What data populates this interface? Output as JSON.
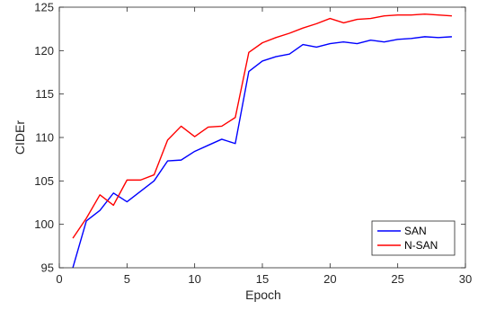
{
  "chart_data": {
    "type": "line",
    "title": "",
    "xlabel": "Epoch",
    "ylabel": "CIDEr",
    "xlim": [
      0,
      30
    ],
    "ylim": [
      95,
      125
    ],
    "xticks": [
      0,
      5,
      10,
      15,
      20,
      25,
      30
    ],
    "yticks": [
      95,
      100,
      105,
      110,
      115,
      120,
      125
    ],
    "xtick_labels": [
      "0",
      "5",
      "10",
      "15",
      "20",
      "25",
      "30"
    ],
    "ytick_labels": [
      "95",
      "100",
      "105",
      "110",
      "115",
      "120",
      "125"
    ],
    "grid": false,
    "legend_position": "bottom-right",
    "series": [
      {
        "name": "SAN",
        "color": "#0000ff",
        "x": [
          1,
          2,
          3,
          4,
          5,
          6,
          7,
          8,
          9,
          10,
          11,
          12,
          13,
          14,
          15,
          16,
          17,
          18,
          19,
          20,
          21,
          22,
          23,
          24,
          25,
          26,
          27,
          28,
          29
        ],
        "values": [
          95.0,
          100.4,
          101.6,
          103.6,
          102.6,
          103.8,
          105.0,
          107.3,
          107.4,
          108.4,
          109.1,
          109.8,
          109.3,
          117.6,
          118.8,
          119.3,
          119.6,
          120.7,
          120.4,
          120.8,
          121.0,
          120.8,
          121.2,
          121.0,
          121.3,
          121.4,
          121.6,
          121.5,
          121.6
        ]
      },
      {
        "name": "N-SAN",
        "color": "#ff0000",
        "x": [
          1,
          2,
          3,
          4,
          5,
          6,
          7,
          8,
          9,
          10,
          11,
          12,
          13,
          14,
          15,
          16,
          17,
          18,
          19,
          20,
          21,
          22,
          23,
          24,
          25,
          26,
          27,
          28,
          29
        ],
        "values": [
          98.4,
          100.7,
          103.4,
          102.2,
          105.1,
          105.1,
          105.7,
          109.7,
          111.3,
          110.1,
          111.2,
          111.3,
          112.3,
          119.8,
          120.9,
          121.5,
          122.0,
          122.6,
          123.1,
          123.7,
          123.2,
          123.6,
          123.7,
          124.0,
          124.1,
          124.1,
          124.2,
          124.1,
          124.0
        ]
      }
    ]
  }
}
